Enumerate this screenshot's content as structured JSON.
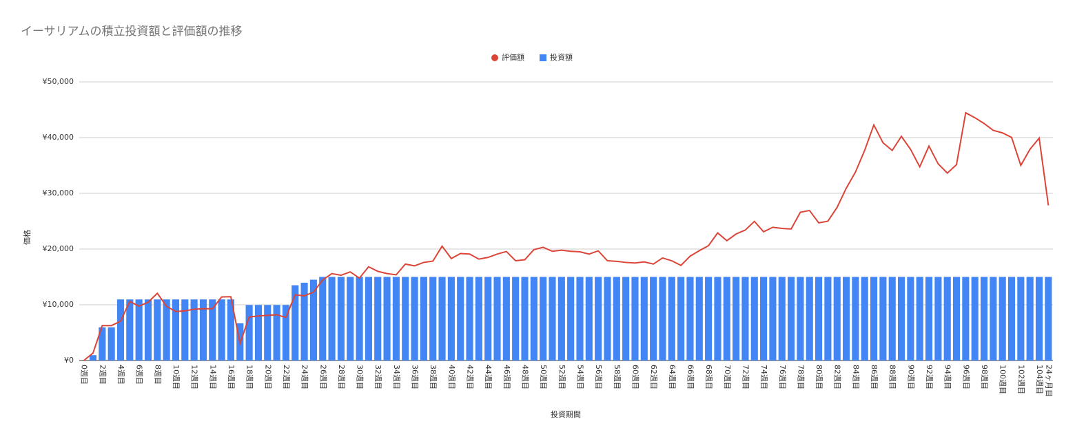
{
  "chart_data": {
    "type": "bar_line",
    "title": "イーサリアムの積立投資額と評価額の推移",
    "x_label": "投資期間",
    "y_label": "価格",
    "categories": [
      "0週目",
      null,
      "2週目",
      null,
      "4週目",
      null,
      "6週目",
      null,
      "8週目",
      null,
      "10週目",
      null,
      "12週目",
      null,
      "14週目",
      null,
      "16週目",
      null,
      "18週目",
      null,
      "20週目",
      null,
      "22週目",
      null,
      "24週目",
      null,
      "26週目",
      null,
      "28週目",
      null,
      "30週目",
      null,
      "32週目",
      null,
      "34週目",
      null,
      "36週目",
      null,
      "38週目",
      null,
      "40週目",
      null,
      "42週目",
      null,
      "44週目",
      null,
      "46週目",
      null,
      "48週目",
      null,
      "50週目",
      null,
      "52週目",
      null,
      "54週目",
      null,
      "56週目",
      null,
      "58週目",
      null,
      "60週目",
      null,
      "62週目",
      null,
      "64週目",
      null,
      "66週目",
      null,
      "68週目",
      null,
      "70週目",
      null,
      "72週目",
      null,
      "74週目",
      null,
      "76週目",
      null,
      "78週目",
      null,
      "80週目",
      null,
      "82週目",
      null,
      "84週目",
      null,
      "86週目",
      null,
      "88週目",
      null,
      "90週目",
      null,
      "92週目",
      null,
      "94週目",
      null,
      "96週目",
      null,
      "98週目",
      null,
      "100週目",
      null,
      "102週目",
      null,
      "104週目",
      "24ヶ月目"
    ],
    "series": [
      {
        "name": "評価額",
        "color": "#db4437",
        "kind": "line",
        "values": [
          0,
          1343,
          6272,
          6272,
          7056,
          10600,
          9745,
          10465,
          12063,
          9728,
          8800,
          8900,
          9200,
          9296,
          9296,
          11400,
          11444,
          3084,
          7800,
          8000,
          8100,
          8215,
          7726,
          11800,
          11600,
          12272,
          14449,
          15600,
          15300,
          15900,
          14789,
          16821,
          16000,
          15600,
          15372,
          17300,
          16987,
          17600,
          17838,
          20516,
          18300,
          19200,
          19100,
          18200,
          18500,
          19100,
          19560,
          17900,
          18085,
          19900,
          20321,
          19600,
          19800,
          19600,
          19500,
          19100,
          19677,
          17900,
          17800,
          17600,
          17500,
          17700,
          17306,
          18400,
          17900,
          17069,
          18722,
          19711,
          20606,
          22900,
          21500,
          22700,
          23400,
          24968,
          23100,
          23900,
          23700,
          23596,
          26600,
          26923,
          24700,
          25009,
          27471,
          30927,
          33813,
          37700,
          42274,
          39071,
          37700,
          40229,
          37884,
          34760,
          38480,
          35300,
          33635,
          35144,
          44450,
          43573,
          42531,
          41300,
          40850,
          40040,
          35017,
          37901,
          39910,
          27842
        ]
      },
      {
        "name": "投資額",
        "color": "#4285f4",
        "kind": "bar",
        "values": [
          0,
          960,
          5960,
          5960,
          10960,
          10960,
          10960,
          10960,
          10960,
          10960,
          10960,
          10960,
          10960,
          10960,
          10960,
          10960,
          10960,
          6682,
          9960,
          9960,
          9960,
          9960,
          9960,
          13500,
          13960,
          14500,
          15000,
          15000,
          15000,
          15000,
          15000,
          15000,
          15000,
          15000,
          15000,
          15000,
          15000,
          15000,
          15000,
          15000,
          15000,
          15000,
          15000,
          15000,
          15000,
          15000,
          15000,
          15000,
          15000,
          15000,
          15000,
          15000,
          15000,
          15000,
          15000,
          15000,
          15000,
          15000,
          15000,
          15000,
          15000,
          15000,
          15000,
          15000,
          15000,
          15000,
          15000,
          15000,
          15000,
          15000,
          15000,
          15000,
          15000,
          15000,
          15000,
          15000,
          15000,
          15000,
          15000,
          15000,
          15000,
          15000,
          15000,
          15000,
          15000,
          15000,
          15000,
          15000,
          15000,
          15000,
          15000,
          15000,
          15000,
          15000,
          15000,
          15000,
          15000,
          15000,
          15000,
          15000,
          15000,
          15000,
          15000,
          15000,
          15000,
          15000
        ]
      }
    ],
    "ylim": [
      0,
      50000
    ],
    "yticks": [
      {
        "value": 0,
        "label": "¥0"
      },
      {
        "value": 10000,
        "label": "¥10,000"
      },
      {
        "value": 20000,
        "label": "¥20,000"
      },
      {
        "value": 30000,
        "label": "¥30,000"
      },
      {
        "value": 40000,
        "label": "¥40,000"
      },
      {
        "value": 50000,
        "label": "¥50,000"
      }
    ],
    "grid": true
  }
}
